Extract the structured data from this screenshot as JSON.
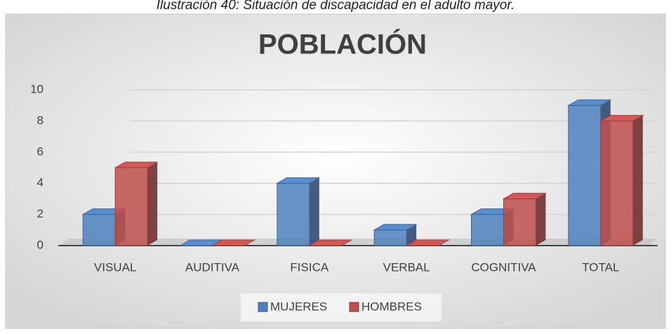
{
  "caption": "Ilustración 40: Situación de discapacidad en el adulto mayor.",
  "chart_data": {
    "type": "bar3d",
    "title": "POBLACIÓN",
    "categories": [
      "VISUAL",
      "AUDITIVA",
      "FISICA",
      "VERBAL",
      "COGNITIVA",
      "TOTAL"
    ],
    "series": [
      {
        "name": "MUJERES",
        "color": "#4f81bd",
        "values": [
          2,
          0,
          4,
          1,
          2,
          9
        ]
      },
      {
        "name": "HOMBRES",
        "color": "#c0504d",
        "values": [
          5,
          0,
          0,
          0,
          3,
          8
        ]
      }
    ],
    "ylim": [
      0,
      10
    ],
    "yticks": [
      0,
      2,
      4,
      6,
      8,
      10
    ],
    "grid": true,
    "legend": "bottom"
  }
}
